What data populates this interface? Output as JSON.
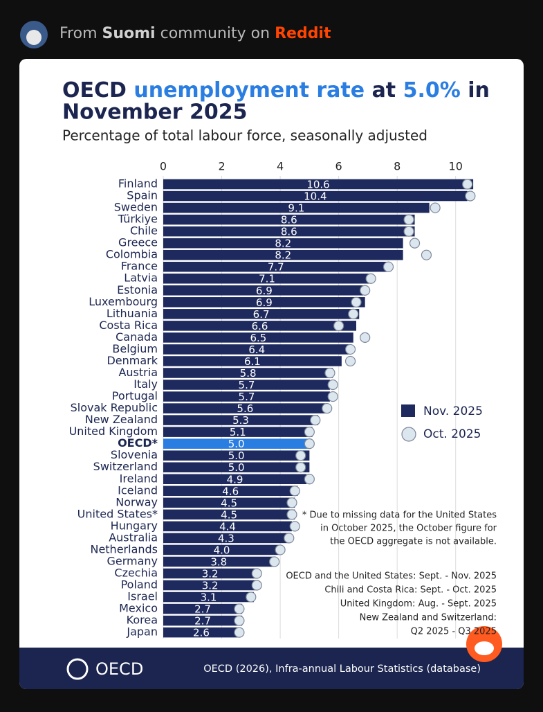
{
  "header": {
    "prefix": "From",
    "community": "Suomi",
    "middle": "community on",
    "site": "Reddit"
  },
  "chart_data": {
    "type": "bar",
    "orientation": "horizontal",
    "title": [
      "OECD",
      "unemployment rate",
      "at",
      "5.0%",
      "in",
      "November 2025"
    ],
    "subtitle": "Percentage of total labour force, seasonally adjusted",
    "categories": [
      "Finland",
      "Spain",
      "Sweden",
      "Türkiye",
      "Chile",
      "Greece",
      "Colombia",
      "France",
      "Latvia",
      "Estonia",
      "Luxembourg",
      "Lithuania",
      "Costa Rica",
      "Canada",
      "Belgium",
      "Denmark",
      "Austria",
      "Italy",
      "Portugal",
      "Slovak Republic",
      "New Zealand",
      "United Kingdom",
      "OECD*",
      "Slovenia",
      "Switzerland",
      "Ireland",
      "Iceland",
      "Norway",
      "United States*",
      "Hungary",
      "Australia",
      "Netherlands",
      "Germany",
      "Czechia",
      "Poland",
      "Israel",
      "Mexico",
      "Korea",
      "Japan"
    ],
    "series": [
      {
        "name": "Nov. 2025",
        "color": "#1e2a5e",
        "highlight_color": "#2a7de1",
        "values": [
          10.6,
          10.4,
          9.1,
          8.6,
          8.6,
          8.2,
          8.2,
          7.7,
          7.1,
          6.9,
          6.9,
          6.7,
          6.6,
          6.5,
          6.4,
          6.1,
          5.8,
          5.7,
          5.7,
          5.6,
          5.3,
          5.1,
          5.0,
          5.0,
          5.0,
          4.9,
          4.6,
          4.5,
          4.5,
          4.4,
          4.3,
          4.0,
          3.8,
          3.2,
          3.2,
          3.1,
          2.7,
          2.7,
          2.6
        ],
        "value_labels": [
          "10.6",
          "10.4",
          "9.1",
          "8.6",
          "8.6",
          "8.2",
          "8.2",
          "7.7",
          "7.1",
          "6.9",
          "6.9",
          "6.7",
          "6.6",
          "6.5",
          "6.4",
          "6.1",
          "5.8",
          "5.7",
          "5.7",
          "5.6",
          "5.3",
          "5.1",
          "5.0",
          "5.0",
          "5.0",
          "4.9",
          "4.6",
          "4.5",
          "4.5",
          "4.4",
          "4.3",
          "4.0",
          "3.8",
          "3.2",
          "3.2",
          "3.1",
          "2.7",
          "2.7",
          "2.6"
        ]
      },
      {
        "name": "Oct. 2025",
        "color": "#dce6ef",
        "marker": "circle",
        "values": [
          10.4,
          10.5,
          9.3,
          8.4,
          8.4,
          8.6,
          9.0,
          7.7,
          7.1,
          6.9,
          6.6,
          6.5,
          6.0,
          6.9,
          6.4,
          6.4,
          5.7,
          5.8,
          5.8,
          5.6,
          5.2,
          5.0,
          5.0,
          4.7,
          4.7,
          5.0,
          4.5,
          4.4,
          4.4,
          4.5,
          4.3,
          4.0,
          3.8,
          3.2,
          3.2,
          3.0,
          2.6,
          2.6,
          2.6
        ]
      }
    ],
    "highlight_index": 22,
    "xlim": [
      0,
      11
    ],
    "xticks": [
      0,
      2,
      4,
      6,
      8,
      10
    ],
    "grid": true,
    "legend": "right",
    "notes": [
      "* Due to missing data for the United States",
      "in October 2025, the October figure for",
      "the OECD aggregate is not available."
    ],
    "periods": [
      "OECD and the United States: Sept. - Nov. 2025",
      "Chili and Costa Rica: Sept. - Oct. 2025",
      "United Kingdom: Aug. - Sept. 2025",
      "New Zealand and Switzerland:",
      "Q2 2025 - Q3 2025"
    ],
    "source": "OECD (2026), Infra-annual Labour Statistics (database)",
    "logo": "OECD"
  }
}
